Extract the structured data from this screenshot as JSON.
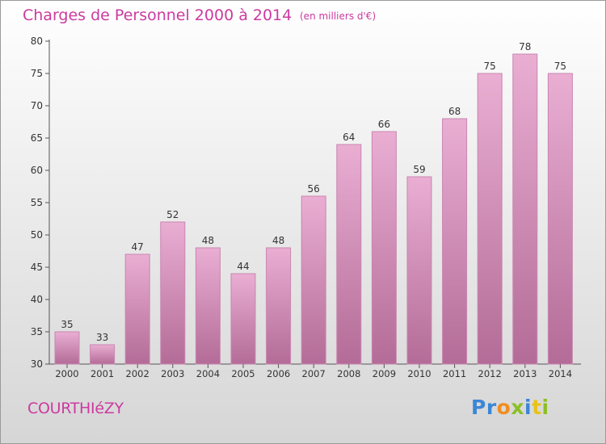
{
  "title": "Charges de Personnel 2000 à 2014",
  "subtitle": "(en milliers d'€)",
  "town": "COURTHIéZY",
  "logo": {
    "letters": [
      {
        "ch": "P",
        "color": "#3b86d6"
      },
      {
        "ch": "r",
        "color": "#3b86d6"
      },
      {
        "ch": "o",
        "color": "#f28c1e"
      },
      {
        "ch": "x",
        "color": "#8cbf26"
      },
      {
        "ch": "i",
        "color": "#3b86d6"
      },
      {
        "ch": "t",
        "color": "#e8c21a"
      },
      {
        "ch": "i",
        "color": "#8cbf26"
      }
    ]
  },
  "colors": {
    "bar_top": "#eaaed3",
    "bar_bottom": "#b36c97",
    "bar_border": "#c986b0",
    "axis": "#555555",
    "text": "#333333",
    "accent": "#cc3aa0"
  },
  "chart_data": {
    "type": "bar",
    "title": "Charges de Personnel 2000 à 2014",
    "subtitle": "(en milliers d'€)",
    "categories": [
      "2000",
      "2001",
      "2002",
      "2003",
      "2004",
      "2005",
      "2006",
      "2007",
      "2008",
      "2009",
      "2010",
      "2011",
      "2012",
      "2013",
      "2014"
    ],
    "values": [
      35,
      33,
      47,
      52,
      48,
      44,
      48,
      56,
      64,
      66,
      59,
      68,
      75,
      78,
      75
    ],
    "ylim": [
      30,
      80
    ],
    "yticks": [
      30,
      35,
      40,
      45,
      50,
      55,
      60,
      65,
      70,
      75,
      80
    ],
    "grid": false,
    "data_labels": true
  }
}
